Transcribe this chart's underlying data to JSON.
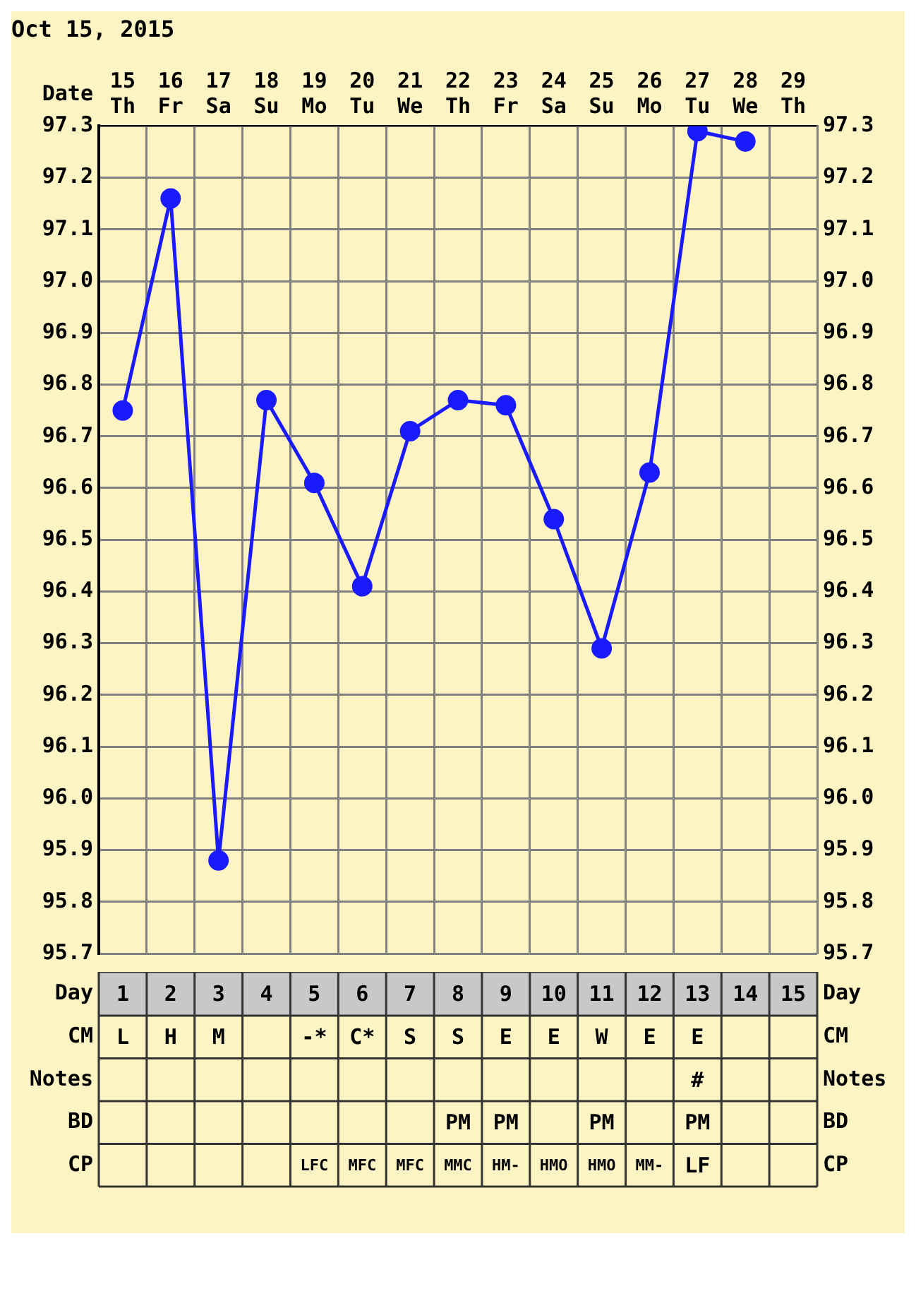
{
  "chart_data": [
    {
      "type": "line",
      "title": "Oct 15, 2015",
      "xlabel": "Date",
      "categories": [
        "15 Th",
        "16 Fr",
        "17 Sa",
        "18 Su",
        "19 Mo",
        "20 Tu",
        "21 We",
        "22 Th",
        "23 Fr",
        "24 Sa",
        "25 Su",
        "26 Mo",
        "27 Tu",
        "28 We",
        "29 Th"
      ],
      "series": [
        {
          "color": "#1a1aff",
          "values": [
            96.75,
            97.16,
            95.88,
            96.77,
            96.61,
            96.41,
            96.71,
            96.77,
            96.76,
            96.54,
            96.29,
            96.63,
            97.29,
            97.27,
            null
          ]
        }
      ],
      "ylim": [
        95.7,
        97.3
      ],
      "yticks": [
        95.7,
        95.8,
        95.9,
        {
          "value": 96,
          "label": "96.0"
        },
        96.1,
        96.2,
        96.3,
        96.4,
        96.5,
        96.6,
        96.7,
        96.8,
        96.9,
        {
          "value": 97,
          "label": "97.0"
        },
        97.1,
        97.2,
        97.3
      ],
      "y2lim": [
        95.7,
        97.3
      ],
      "y2ticks": [
        95.7,
        95.8,
        95.9,
        {
          "value": 96,
          "label": "96.0"
        },
        96.1,
        96.2,
        96.3,
        96.4,
        96.5,
        96.6,
        96.7,
        96.8,
        96.9,
        {
          "value": 97,
          "label": "97.0"
        },
        97.1,
        97.2,
        97.3
      ],
      "grid": true,
      "marker": "circle",
      "line_style": "solid",
      "legend": false
    },
    {
      "type": "heatmap",
      "xlabel": "Day",
      "categories": [
        "1",
        "2",
        "3",
        "4",
        "5",
        "6",
        "7",
        "8",
        "9",
        "10",
        "11",
        "12",
        "13",
        "14",
        "15"
      ],
      "y_categories": [
        "CM",
        "Notes",
        "BD",
        "CP"
      ],
      "y2_categories": [
        "CM",
        "Notes",
        "BD",
        "CP"
      ],
      "cells": [
        [
          null,
          null,
          null,
          null,
          null,
          null,
          null,
          null,
          null,
          null,
          null,
          null,
          null,
          null,
          null
        ],
        [
          null,
          null,
          null,
          null,
          null,
          null,
          null,
          null,
          null,
          null,
          null,
          null,
          null,
          null,
          null
        ],
        [
          null,
          null,
          null,
          null,
          null,
          null,
          null,
          null,
          null,
          null,
          null,
          null,
          null,
          null,
          null
        ],
        [
          null,
          null,
          null,
          null,
          null,
          null,
          null,
          null,
          null,
          null,
          null,
          null,
          null,
          null,
          null
        ]
      ],
      "cell_labels": [
        [
          "L",
          "H",
          "M",
          null,
          "-*",
          "C*",
          "S",
          "S",
          "E",
          "E",
          "W",
          "E",
          "E",
          null,
          null
        ],
        [
          null,
          null,
          null,
          null,
          null,
          null,
          null,
          null,
          null,
          null,
          null,
          null,
          "#",
          null,
          null
        ],
        [
          null,
          null,
          null,
          null,
          null,
          null,
          null,
          "PM",
          "PM",
          null,
          "PM",
          null,
          "PM",
          null,
          null
        ],
        [
          null,
          null,
          null,
          null,
          "LFC",
          "MFC",
          "MFC",
          "MMC",
          "HM-",
          "HMO",
          "HMO",
          "MM-",
          "LF",
          null,
          null
        ]
      ]
    }
  ]
}
